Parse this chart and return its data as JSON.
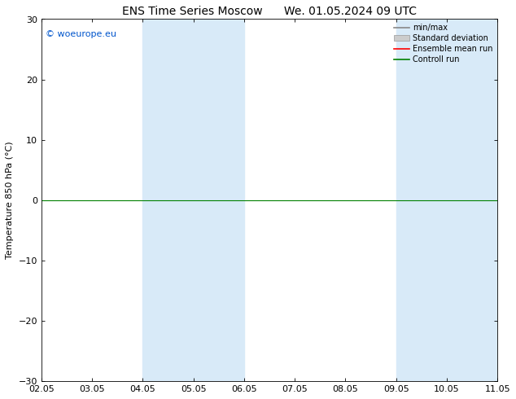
{
  "title": "ENS Time Series Moscow      We. 01.05.2024 09 UTC",
  "ylabel": "Temperature 850 hPa (°C)",
  "ylim": [
    -30,
    30
  ],
  "yticks": [
    -30,
    -20,
    -10,
    0,
    10,
    20,
    30
  ],
  "xtick_labels": [
    "02.05",
    "03.05",
    "04.05",
    "05.05",
    "06.05",
    "07.05",
    "08.05",
    "09.05",
    "10.05",
    "11.05"
  ],
  "xtick_positions": [
    0,
    1,
    2,
    3,
    4,
    5,
    6,
    7,
    8,
    9
  ],
  "shaded_bands": [
    [
      2,
      3
    ],
    [
      3,
      4
    ],
    [
      7,
      8
    ],
    [
      8,
      9
    ]
  ],
  "shaded_color": "#d8eaf8",
  "bg_color": "#ffffff",
  "watermark": "© woeurope.eu",
  "watermark_color": "#0055cc",
  "legend_entries": [
    "min/max",
    "Standard deviation",
    "Ensemble mean run",
    "Controll run"
  ],
  "minmax_color": "#888888",
  "std_color": "#cccccc",
  "ensemble_color": "#ff0000",
  "control_color": "#008000",
  "zero_line_color": "#008000",
  "title_fontsize": 10,
  "axis_fontsize": 8,
  "tick_fontsize": 8
}
